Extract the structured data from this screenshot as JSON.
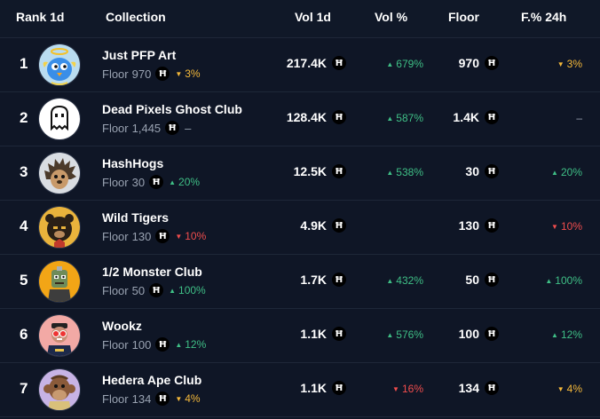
{
  "header": {
    "rank": "Rank 1d",
    "collection": "Collection",
    "vol": "Vol 1d",
    "vol_pct": "Vol %",
    "floor": "Floor",
    "floor_chg": "F.% 24h"
  },
  "currency_symbol": "Ħ",
  "floor_prefix": "Floor",
  "colors": {
    "up": "#3fbf86",
    "down": "#f04d4d",
    "warn": "#f5b93a",
    "bg": "#0f1626"
  },
  "rows": [
    {
      "rank": "1",
      "name": "Just PFP Art",
      "floor_sub": "970",
      "sub_chg": "3%",
      "sub_dir": "warn",
      "vol": "217.4K",
      "vol_pct": "679%",
      "vol_dir": "up",
      "floor": "970",
      "fchg": "3%",
      "fchg_dir": "warn",
      "avatar": "blue-angel-bird"
    },
    {
      "rank": "2",
      "name": "Dead Pixels Ghost Club",
      "floor_sub": "1,445",
      "sub_chg": "–",
      "sub_dir": "none",
      "vol": "128.4K",
      "vol_pct": "587%",
      "vol_dir": "up",
      "floor": "1.4K",
      "fchg": "–",
      "fchg_dir": "none",
      "avatar": "pixel-ghost"
    },
    {
      "rank": "3",
      "name": "HashHogs",
      "floor_sub": "30",
      "sub_chg": "20%",
      "sub_dir": "up",
      "vol": "12.5K",
      "vol_pct": "538%",
      "vol_dir": "up",
      "floor": "30",
      "fchg": "20%",
      "fchg_dir": "up",
      "avatar": "hedgehog"
    },
    {
      "rank": "4",
      "name": "Wild Tigers",
      "floor_sub": "130",
      "sub_chg": "10%",
      "sub_dir": "down",
      "vol": "4.9K",
      "vol_pct": "",
      "vol_dir": "none",
      "floor": "130",
      "fchg": "10%",
      "fchg_dir": "down",
      "avatar": "tiger"
    },
    {
      "rank": "5",
      "name": "1/2 Monster Club",
      "floor_sub": "50",
      "sub_chg": "100%",
      "sub_dir": "up",
      "vol": "1.7K",
      "vol_pct": "432%",
      "vol_dir": "up",
      "floor": "50",
      "fchg": "100%",
      "fchg_dir": "up",
      "avatar": "monster"
    },
    {
      "rank": "6",
      "name": "Wookz",
      "floor_sub": "100",
      "sub_chg": "12%",
      "sub_dir": "up",
      "vol": "1.1K",
      "vol_pct": "576%",
      "vol_dir": "up",
      "floor": "100",
      "fchg": "12%",
      "fchg_dir": "up",
      "avatar": "wookz-character"
    },
    {
      "rank": "7",
      "name": "Hedera Ape Club",
      "floor_sub": "134",
      "sub_chg": "4%",
      "sub_dir": "warn",
      "vol": "1.1K",
      "vol_pct": "16%",
      "vol_dir": "down",
      "floor": "134",
      "fchg": "4%",
      "fchg_dir": "warn",
      "avatar": "ape"
    }
  ]
}
